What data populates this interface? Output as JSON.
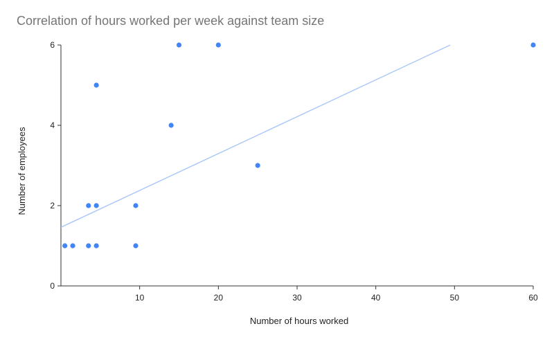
{
  "chart_data": {
    "type": "scatter",
    "title": "Correlation of hours worked per week against team size",
    "xlabel": "Number of hours worked",
    "ylabel": "Number of employees",
    "xlim": [
      0,
      60
    ],
    "ylim": [
      0,
      6
    ],
    "x_ticks": [
      10,
      20,
      30,
      40,
      50,
      60
    ],
    "y_ticks": [
      0,
      2,
      4,
      6
    ],
    "grid": false,
    "legend": "none",
    "point_color": "#4285f4",
    "trendline_color": "#a8c7fa",
    "trendline": {
      "type": "linear",
      "slope": 0.0918,
      "intercept": 1.46
    },
    "points": [
      {
        "x": 0.5,
        "y": 1
      },
      {
        "x": 1.5,
        "y": 1
      },
      {
        "x": 3.5,
        "y": 1
      },
      {
        "x": 4.5,
        "y": 1
      },
      {
        "x": 3.5,
        "y": 2
      },
      {
        "x": 4.5,
        "y": 2
      },
      {
        "x": 4.5,
        "y": 5
      },
      {
        "x": 9.5,
        "y": 2
      },
      {
        "x": 9.5,
        "y": 1
      },
      {
        "x": 14,
        "y": 4
      },
      {
        "x": 15,
        "y": 6
      },
      {
        "x": 20,
        "y": 6
      },
      {
        "x": 25,
        "y": 3
      },
      {
        "x": 60,
        "y": 6
      }
    ]
  }
}
